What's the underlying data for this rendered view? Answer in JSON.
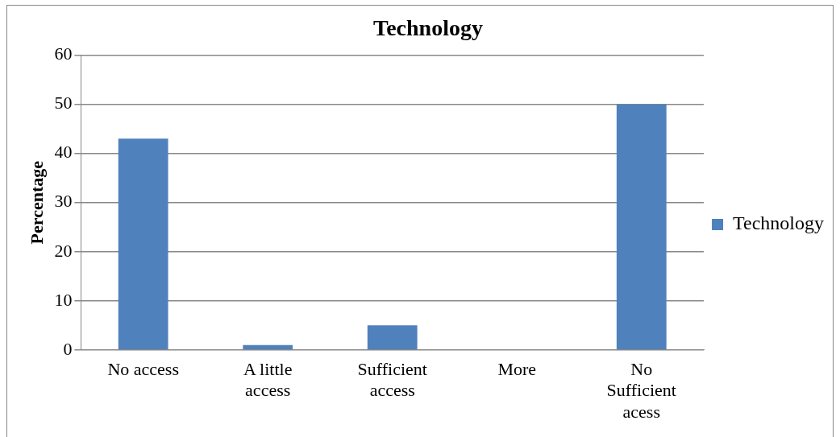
{
  "chart_data": {
    "type": "bar",
    "title": "Technology",
    "ylabel": "Percentage",
    "categories": [
      "No access",
      "A little access",
      "Sufficient access",
      "More",
      "No Sufficient acess"
    ],
    "series": [
      {
        "name": "Technology",
        "color": "#4f81bd",
        "values": [
          43,
          1,
          5,
          0,
          50
        ]
      }
    ],
    "ylim": [
      0,
      60
    ],
    "yticks": [
      0,
      10,
      20,
      30,
      40,
      50,
      60
    ],
    "grid": "y",
    "legend": "right"
  }
}
